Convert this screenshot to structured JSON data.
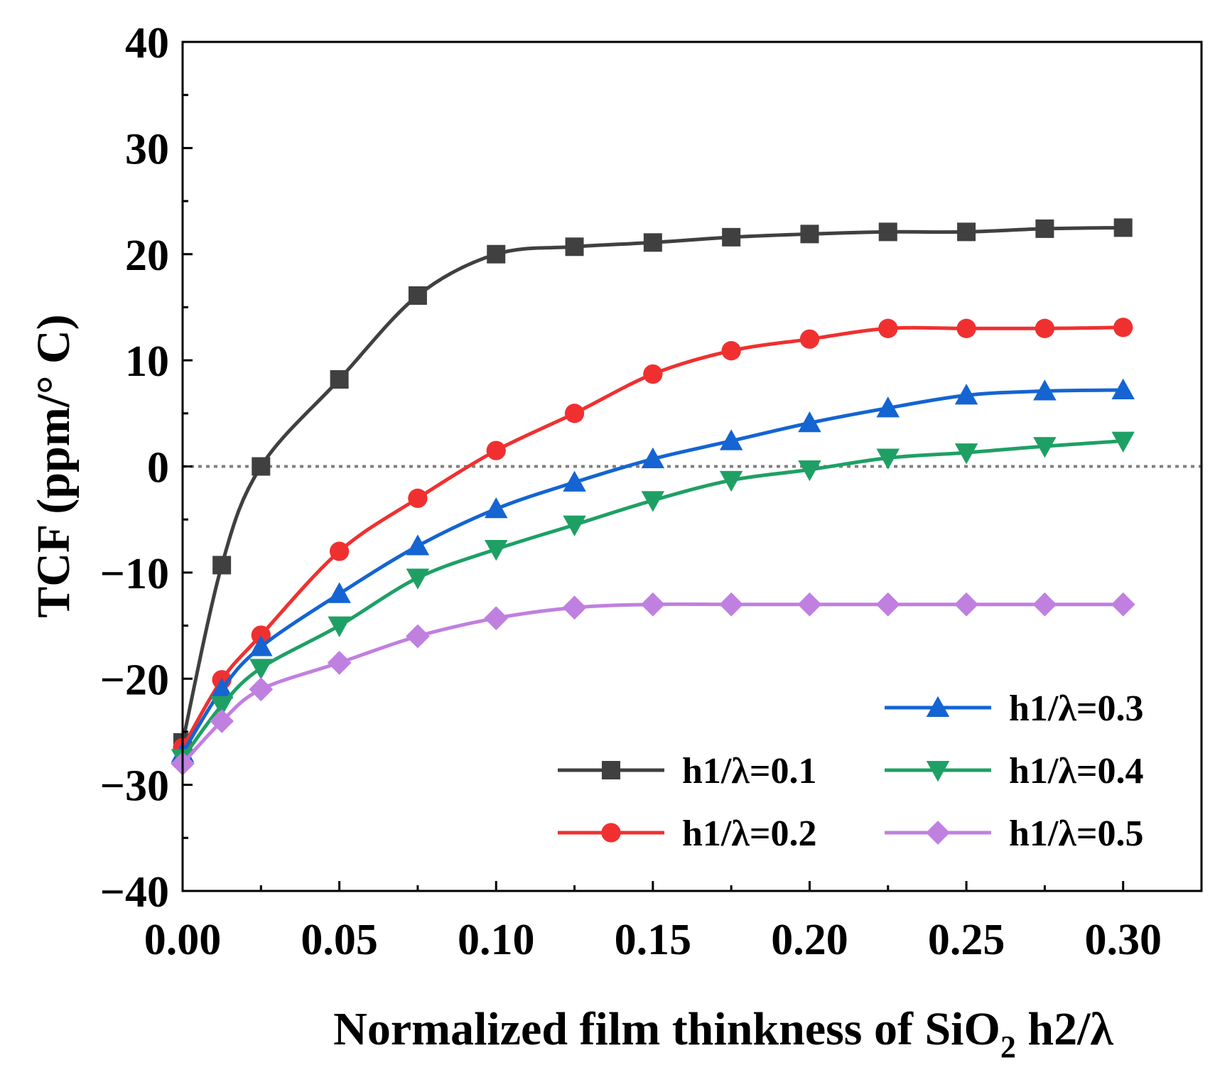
{
  "chart_data": {
    "type": "line",
    "xlabel": "Normalized film thinkness of SiO",
    "xlabel_sub": "2",
    "xlabel_tail": " h2/λ",
    "ylabel": "TCF (ppm/° C)",
    "xlim": [
      0,
      0.325
    ],
    "ylim": [
      -40,
      40
    ],
    "xticks": [
      0,
      0.05,
      0.1,
      0.15,
      0.2,
      0.25,
      0.3
    ],
    "xtick_labels": [
      "0.00",
      "0.05",
      "0.10",
      "0.15",
      "0.20",
      "0.25",
      "0.30"
    ],
    "yticks": [
      -40,
      -30,
      -20,
      -10,
      0,
      10,
      20,
      30,
      40
    ],
    "ytick_labels": [
      "−40",
      "−30",
      "−20",
      "−10",
      "0",
      "10",
      "20",
      "30",
      "40"
    ],
    "reference_line": {
      "y": 0,
      "style": "dotted",
      "color": "#808080"
    },
    "legend_position": "bottom-right",
    "x": [
      0,
      0.0125,
      0.025,
      0.05,
      0.075,
      0.1,
      0.125,
      0.15,
      0.175,
      0.2,
      0.225,
      0.25,
      0.275,
      0.3
    ],
    "series": [
      {
        "name": "h1/λ=0.1",
        "color": "#404040",
        "marker": "square",
        "values": [
          -26,
          -9.3,
          0,
          8.2,
          16.1,
          20.0,
          20.7,
          21.1,
          21.6,
          21.9,
          22.1,
          22.1,
          22.4,
          22.5
        ]
      },
      {
        "name": "h1/λ=0.2",
        "color": "#f03030",
        "marker": "circle",
        "values": [
          -26.5,
          -20.1,
          -15.9,
          -8.0,
          -3.0,
          1.5,
          5.0,
          8.7,
          10.9,
          12.0,
          13.0,
          13.0,
          13.0,
          13.1
        ]
      },
      {
        "name": "h1/λ=0.3",
        "color": "#1464d2",
        "marker": "triangle-up",
        "values": [
          -27,
          -21.0,
          -17.0,
          -12.0,
          -7.5,
          -4.0,
          -1.5,
          0.7,
          2.4,
          4.1,
          5.5,
          6.7,
          7.1,
          7.2
        ]
      },
      {
        "name": "h1/λ=0.4",
        "color": "#1ea064",
        "marker": "triangle-down",
        "values": [
          -27.5,
          -22.5,
          -19.0,
          -15.0,
          -10.5,
          -7.8,
          -5.5,
          -3.2,
          -1.3,
          -0.3,
          0.8,
          1.3,
          1.9,
          2.4
        ]
      },
      {
        "name": "h1/λ=0.5",
        "color": "#c080e0",
        "marker": "diamond",
        "values": [
          -28,
          -24.0,
          -21.0,
          -18.5,
          -16.0,
          -14.3,
          -13.3,
          -13.0,
          -13.0,
          -13.0,
          -13.0,
          -13.0,
          -13.0,
          -13.0
        ]
      }
    ]
  }
}
